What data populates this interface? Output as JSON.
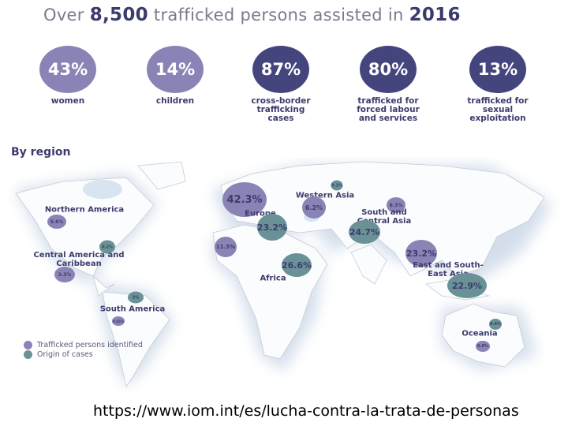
{
  "title": {
    "prefix": "Over ",
    "count": "8,500",
    "middle": " trafficked persons assisted in ",
    "year": "2016"
  },
  "colors": {
    "light_purple": "#8a84b6",
    "dark_navy": "#45457e",
    "teal": "#6a9196",
    "text": "#3b3b6e"
  },
  "stats": [
    {
      "value": "43%",
      "label": "women"
    },
    {
      "value": "14%",
      "label": "children"
    },
    {
      "value": "87%",
      "label": "cross-border trafficking cases"
    },
    {
      "value": "80%",
      "label": "trafficked for forced labour and services"
    },
    {
      "value": "13%",
      "label": "trafficked for sexual exploitation"
    }
  ],
  "region_heading": "By region",
  "regions": [
    {
      "name": "Northern America",
      "identified": "5.6%",
      "origin": "0.2%"
    },
    {
      "name": "Central America and Caribbean",
      "identified": "3.3%"
    },
    {
      "name": "South America",
      "identified": "0.65%",
      "origin": "2%"
    },
    {
      "name": "Europe",
      "identified": "42.3%",
      "origin": "23.2%"
    },
    {
      "name": "Western Asia",
      "identified": "6.2%",
      "origin": "0.1%"
    },
    {
      "name": "South and Central Asia",
      "identified": "6.3%",
      "origin": "24.7%"
    },
    {
      "name": "Africa",
      "identified": "11.5%",
      "origin": "26.6%"
    },
    {
      "name": "East and South-East Asia",
      "identified": "23.2%",
      "origin": "22.9%"
    },
    {
      "name": "Oceania",
      "identified": "0.8%",
      "origin": "0.4%"
    }
  ],
  "legend": {
    "identified": "Trafficked persons identified",
    "origin": "Origin of cases"
  },
  "source_url": "https://www.iom.int/es/lucha-contra-la-trata-de-personas"
}
